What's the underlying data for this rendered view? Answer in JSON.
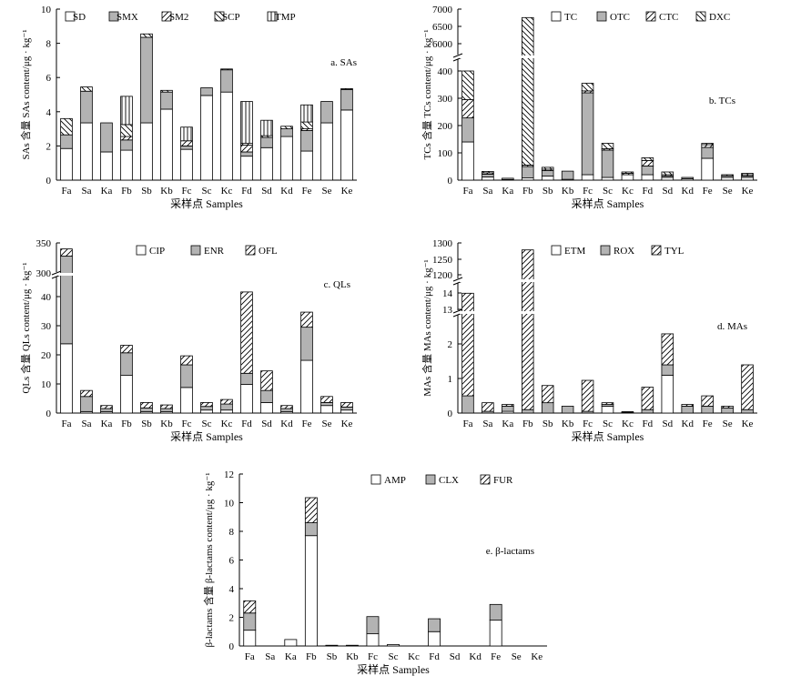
{
  "figure": {
    "samples": [
      "Fa",
      "Sa",
      "Ka",
      "Fb",
      "Sb",
      "Kb",
      "Fc",
      "Sc",
      "Kc",
      "Fd",
      "Sd",
      "Kd",
      "Fe",
      "Se",
      "Ke"
    ],
    "xlabel": "采样点 Samples",
    "patterns": [
      "white",
      "gray",
      "diag",
      "backdiag",
      "vert"
    ]
  },
  "chart_data": [
    {
      "type": "bar",
      "title": "a. SAs",
      "ylabel": "SAs 含量 SAs content/μg · kg⁻¹",
      "xlabel": "采样点 Samples",
      "ylim": [
        0,
        10
      ],
      "yticks": [
        "0",
        "2",
        "4",
        "6",
        "8",
        "10"
      ],
      "categories": [
        "Fa",
        "Sa",
        "Ka",
        "Fb",
        "Sb",
        "Kb",
        "Fc",
        "Sc",
        "Kc",
        "Fd",
        "Sd",
        "Kd",
        "Fe",
        "Se",
        "Ke"
      ],
      "stacked": true,
      "series": [
        {
          "name": "SD",
          "values": [
            1.85,
            3.35,
            1.65,
            1.75,
            3.35,
            4.15,
            1.8,
            4.95,
            5.15,
            1.4,
            1.9,
            2.55,
            1.7,
            3.35,
            4.1
          ]
        },
        {
          "name": "SMX",
          "values": [
            0.8,
            1.85,
            1.7,
            0.6,
            5.0,
            1.0,
            0.2,
            0.45,
            1.3,
            0.25,
            0.6,
            0.45,
            1.2,
            1.25,
            1.2
          ]
        },
        {
          "name": "SM2",
          "values": [
            0.0,
            0.0,
            0.0,
            0.2,
            0.0,
            0.0,
            0.3,
            0.0,
            0.0,
            0.4,
            0.0,
            0.0,
            0.1,
            0.0,
            0.0
          ]
        },
        {
          "name": "SCP",
          "values": [
            0.95,
            0.25,
            0.0,
            0.7,
            0.2,
            0.1,
            0.0,
            0.0,
            0.05,
            0.1,
            0.1,
            0.15,
            0.4,
            0.0,
            0.05
          ]
        },
        {
          "name": "TMP",
          "values": [
            0.0,
            0.0,
            0.0,
            1.65,
            0.0,
            0.0,
            0.8,
            0.0,
            0.0,
            2.45,
            0.9,
            0.0,
            1.0,
            0.0,
            0.0
          ]
        }
      ]
    },
    {
      "type": "bar",
      "title": "b. TCs",
      "ylabel": "TCs 含量 TCs content/μg · kg⁻¹",
      "xlabel": "采样点 Samples",
      "ylim": [
        0,
        7000
      ],
      "axis_break": {
        "lower": [
          0,
          400
        ],
        "upper": [
          6000,
          7000
        ]
      },
      "yticks": [
        "0",
        "100",
        "200",
        "300",
        "400",
        "6000",
        "6500",
        "7000"
      ],
      "categories": [
        "Fa",
        "Sa",
        "Ka",
        "Fb",
        "Sb",
        "Kb",
        "Fc",
        "Sc",
        "Kc",
        "Fd",
        "Sd",
        "Kd",
        "Fe",
        "Se",
        "Ke"
      ],
      "stacked": true,
      "series": [
        {
          "name": "TC",
          "values": [
            140,
            12,
            2,
            8,
            15,
            3,
            20,
            10,
            20,
            20,
            10,
            5,
            80,
            10,
            10
          ]
        },
        {
          "name": "OTC",
          "values": [
            88,
            10,
            5,
            42,
            20,
            30,
            300,
            100,
            0,
            32,
            5,
            5,
            40,
            6,
            5
          ]
        },
        {
          "name": "CTC",
          "values": [
            67,
            5,
            0,
            5,
            5,
            0,
            7,
            5,
            5,
            20,
            5,
            0,
            10,
            0,
            5
          ]
        },
        {
          "name": "DXC",
          "values": [
            105,
            5,
            0,
            6700,
            7,
            0,
            28,
            20,
            5,
            10,
            10,
            0,
            5,
            4,
            5
          ]
        }
      ]
    },
    {
      "type": "bar",
      "title": "c. QLs",
      "ylabel": "QLs 含量 QLs content/μg · kg⁻¹",
      "xlabel": "采样点 Samples",
      "ylim": [
        0,
        350
      ],
      "axis_break": {
        "lower": [
          0,
          45
        ],
        "upper": [
          300,
          350
        ]
      },
      "yticks": [
        "0",
        "10",
        "20",
        "30",
        "40",
        "300",
        "350"
      ],
      "categories": [
        "Fa",
        "Sa",
        "Ka",
        "Fb",
        "Sb",
        "Kb",
        "Fc",
        "Sc",
        "Kc",
        "Fd",
        "Sd",
        "Kd",
        "Fe",
        "Se",
        "Ke"
      ],
      "stacked": true,
      "series": [
        {
          "name": "CIP",
          "values": [
            23,
            0.5,
            0.5,
            12.5,
            0.5,
            0.5,
            8.5,
            1,
            1,
            9.5,
            3.5,
            0.5,
            17.5,
            2.5,
            1
          ]
        },
        {
          "name": "ENR",
          "values": [
            305,
            5,
            1,
            7.5,
            1.2,
            1,
            7.5,
            1.2,
            2,
            3.7,
            4,
            1,
            11,
            1,
            1
          ]
        },
        {
          "name": "OFL",
          "values": [
            12,
            2,
            1,
            2.5,
            1.8,
            1.2,
            3,
            1.3,
            1.5,
            27,
            6.5,
            1,
            5,
            2,
            1.5
          ]
        }
      ]
    },
    {
      "type": "bar",
      "title": "d. MAs",
      "ylabel": "MAs 含量 MAs content/μg · kg⁻¹",
      "xlabel": "采样点 Samples",
      "ylim": [
        0,
        1300
      ],
      "axis_break": {
        "lower": [
          0,
          2.8
        ],
        "mid": [
          13,
          14.3
        ],
        "upper": [
          1200,
          1300
        ]
      },
      "yticks": [
        "0",
        "1",
        "2",
        "13",
        "14",
        "1200",
        "1250",
        "1300"
      ],
      "categories": [
        "Fa",
        "Sa",
        "Ka",
        "Fb",
        "Sb",
        "Kb",
        "Fc",
        "Sc",
        "Kc",
        "Fd",
        "Sd",
        "Kd",
        "Fe",
        "Se",
        "Ke"
      ],
      "stacked": true,
      "series": [
        {
          "name": "ETM",
          "values": [
            0.0,
            0.0,
            0.05,
            0.0,
            0.0,
            0.0,
            0.0,
            0.2,
            0.0,
            0.0,
            1.1,
            0.0,
            0.0,
            0.0,
            0.0
          ]
        },
        {
          "name": "ROX",
          "values": [
            0.5,
            0.05,
            0.15,
            0.1,
            0.3,
            0.2,
            0.05,
            0.05,
            0.02,
            0.1,
            0.3,
            0.2,
            0.2,
            0.15,
            0.1
          ]
        },
        {
          "name": "TYL",
          "values": [
            13.5,
            0.25,
            0.05,
            1278,
            0.5,
            0.0,
            0.9,
            0.05,
            0.02,
            0.65,
            0.9,
            0.05,
            0.3,
            0.05,
            1.3
          ]
        }
      ]
    },
    {
      "type": "bar",
      "title": "e. β-lactams",
      "ylabel": "β-lactams 含量 β-lactams content/μg · kg⁻¹",
      "xlabel": "采样点 Samples",
      "ylim": [
        0,
        12
      ],
      "yticks": [
        "0",
        "2",
        "4",
        "6",
        "8",
        "10",
        "12"
      ],
      "categories": [
        "Fa",
        "Sa",
        "Ka",
        "Fb",
        "Sb",
        "Kb",
        "Fc",
        "Sc",
        "Kc",
        "Fd",
        "Sd",
        "Kd",
        "Fe",
        "Se",
        "Ke"
      ],
      "stacked": true,
      "series": [
        {
          "name": "AMP",
          "values": [
            1.1,
            0,
            0.45,
            7.7,
            0.05,
            0.05,
            0.85,
            0.1,
            0,
            1.0,
            0,
            0,
            1.8,
            0,
            0
          ]
        },
        {
          "name": "CLX",
          "values": [
            1.2,
            0,
            0,
            0.9,
            0,
            0,
            1.2,
            0,
            0,
            0.9,
            0,
            0,
            1.1,
            0,
            0
          ]
        },
        {
          "name": "FUR",
          "values": [
            0.85,
            0,
            0,
            1.75,
            0,
            0,
            0,
            0,
            0,
            0,
            0,
            0,
            0,
            0,
            0
          ]
        }
      ]
    }
  ]
}
